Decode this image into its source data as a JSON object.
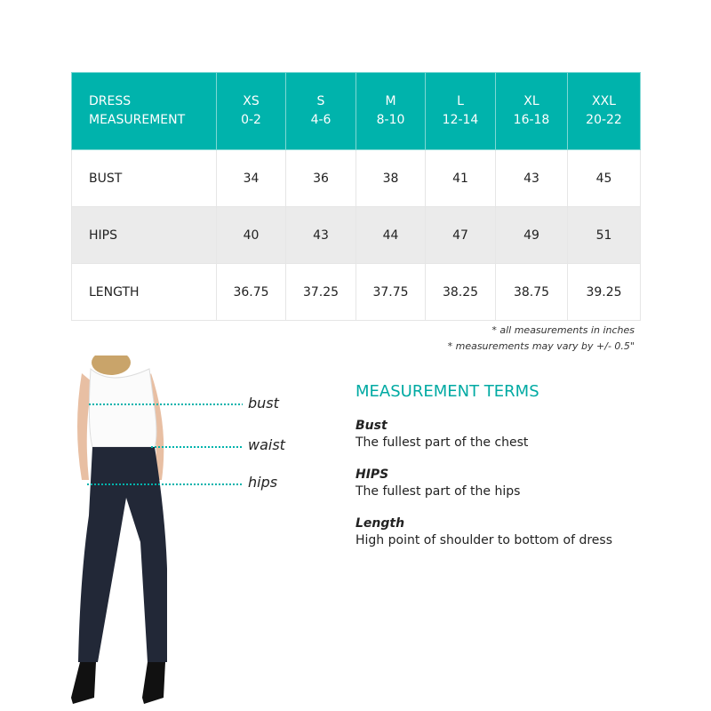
{
  "table": {
    "header": {
      "first": [
        "DRESS",
        "MEASUREMENT"
      ],
      "sizes": [
        {
          "size": "XS",
          "range": "0-2"
        },
        {
          "size": "S",
          "range": "4-6"
        },
        {
          "size": "M",
          "range": "8-10"
        },
        {
          "size": "L",
          "range": "12-14"
        },
        {
          "size": "XL",
          "range": "16-18"
        },
        {
          "size": "XXL",
          "range": "20-22"
        }
      ]
    },
    "rows": [
      {
        "label": "BUST",
        "values": [
          "34",
          "36",
          "38",
          "41",
          "43",
          "45"
        ]
      },
      {
        "label": "HIPS",
        "values": [
          "40",
          "43",
          "44",
          "47",
          "49",
          "51"
        ]
      },
      {
        "label": "LENGTH",
        "values": [
          "36.75",
          "37.25",
          "37.75",
          "38.25",
          "38.75",
          "39.25"
        ]
      }
    ]
  },
  "notes": [
    "* all measurements in inches",
    "* measurements may vary by +/- 0.5\""
  ],
  "figure_labels": {
    "bust": "bust",
    "waist": "waist",
    "hips": "hips"
  },
  "terms": {
    "title": "MEASUREMENT TERMS",
    "items": [
      {
        "name": "Bust",
        "desc": "The fullest part of the chest"
      },
      {
        "name": "HIPS",
        "desc": "The fullest part of the hips"
      },
      {
        "name": "Length",
        "desc": "High point of shoulder to bottom of dress"
      }
    ]
  },
  "colors": {
    "accent": "#00b3ac",
    "alt_row": "#ebebeb"
  }
}
